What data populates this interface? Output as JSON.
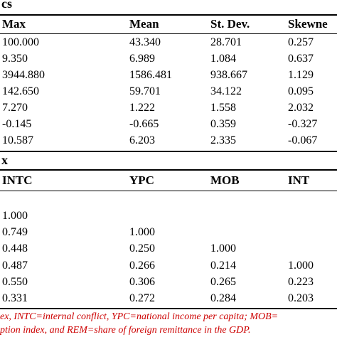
{
  "table1": {
    "caption_fragment": "cs",
    "headers": [
      "Max",
      "Mean",
      "St. Dev.",
      "Skewne"
    ],
    "rows": [
      [
        "100.000",
        "43.340",
        "28.701",
        "0.257"
      ],
      [
        "9.350",
        "6.989",
        "1.084",
        "0.637"
      ],
      [
        "3944.880",
        "1586.481",
        "938.667",
        "1.129"
      ],
      [
        "142.650",
        "59.701",
        "34.122",
        "0.095"
      ],
      [
        "7.270",
        "1.222",
        "1.558",
        "2.032"
      ],
      [
        "-0.145",
        "-0.665",
        "0.359",
        "-0.327"
      ],
      [
        "10.587",
        "6.203",
        "2.335",
        "-0.067"
      ]
    ]
  },
  "table2": {
    "caption_fragment": "x",
    "headers": [
      "INTC",
      "YPC",
      "MOB",
      "INT"
    ],
    "rows": [
      [
        "1.000",
        "",
        "",
        ""
      ],
      [
        "0.749",
        "1.000",
        "",
        ""
      ],
      [
        "0.448",
        "0.250",
        "1.000",
        ""
      ],
      [
        "0.487",
        "0.266",
        "0.214",
        "1.000"
      ],
      [
        "0.550",
        "0.306",
        "0.265",
        "0.223"
      ],
      [
        "0.331",
        "0.272",
        "0.284",
        "0.203"
      ]
    ]
  },
  "footnote": {
    "line1": "ex, INTC=internal conflict, YPC=national income per capita; MOB=",
    "line2": "ption index, and REM=share of foreign remittance in the GDP."
  },
  "colors": {
    "text": "#000000",
    "footnote": "#cc0000",
    "rule": "#000000",
    "background": "#ffffff"
  }
}
